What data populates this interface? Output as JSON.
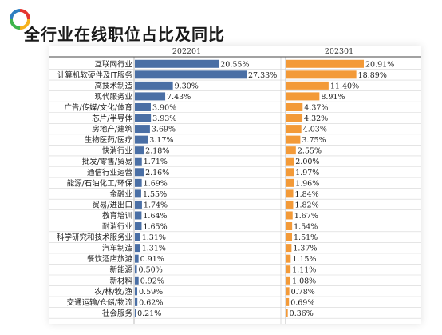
{
  "title": "全行业在线职位占比及同比",
  "colors": {
    "bar_left": "#4a6fa5",
    "bar_right": "#f39a38",
    "grid": "#d5d5d5",
    "header_line": "#444444",
    "logo_ring": [
      "#e5352f",
      "#f6b21c",
      "#3db54a",
      "#2d7fc1"
    ]
  },
  "chart_data": {
    "type": "bar",
    "orientation": "horizontal",
    "categories": [
      "互联网行业",
      "计算机软硬件及IT服务",
      "高技术制造",
      "现代服务业",
      "广告/传媒/文化/体育",
      "芯片/半导体",
      "房地产/建筑",
      "生物医药/医疗",
      "快消行业",
      "批发/零售/贸易",
      "通信行业运营",
      "能源/石油化工/环保",
      "金融业",
      "贸易/进出口",
      "教育培训",
      "耐消行业",
      "科学研究和技术服务业",
      "汽车制造",
      "餐饮酒店旅游",
      "新能源",
      "新材料",
      "农/林/牧/渔",
      "交通运输/仓储/物流",
      "社会服务"
    ],
    "series": [
      {
        "name": "202201",
        "values": [
          20.55,
          27.33,
          9.3,
          7.43,
          3.9,
          3.93,
          3.69,
          3.17,
          2.18,
          1.71,
          2.16,
          1.69,
          1.55,
          1.74,
          1.64,
          1.65,
          1.31,
          1.31,
          0.91,
          0.5,
          0.92,
          0.59,
          0.62,
          0.21
        ],
        "labels": [
          "20.55%",
          "27.33%",
          "9.30%",
          "7.43%",
          "3.90%",
          "3.93%",
          "3.69%",
          "3.17%",
          "2.18%",
          "1.71%",
          "2.16%",
          "1.69%",
          "1.55%",
          "1.74%",
          "1.64%",
          "1.65%",
          "1.31%",
          "1.31%",
          "0.91%",
          "0.50%",
          "0.92%",
          "0.59%",
          "0.62%",
          "0.21%"
        ]
      },
      {
        "name": "202301",
        "values": [
          20.91,
          18.89,
          11.4,
          8.91,
          4.37,
          4.32,
          4.03,
          3.75,
          2.55,
          2.0,
          1.97,
          1.96,
          1.84,
          1.82,
          1.67,
          1.54,
          1.51,
          1.37,
          1.15,
          1.11,
          1.08,
          0.78,
          0.69,
          0.36
        ],
        "labels": [
          "20.91%",
          "18.89%",
          "11.40%",
          "8.91%",
          "4.37%",
          "4.32%",
          "4.03%",
          "3.75%",
          "2.55%",
          "2.00%",
          "1.97%",
          "1.96%",
          "1.84%",
          "1.82%",
          "1.67%",
          "1.54%",
          "1.51%",
          "1.37%",
          "1.15%",
          "1.11%",
          "1.08%",
          "0.78%",
          "0.69%",
          "0.36%"
        ]
      }
    ],
    "unit": "%",
    "grid": true
  }
}
